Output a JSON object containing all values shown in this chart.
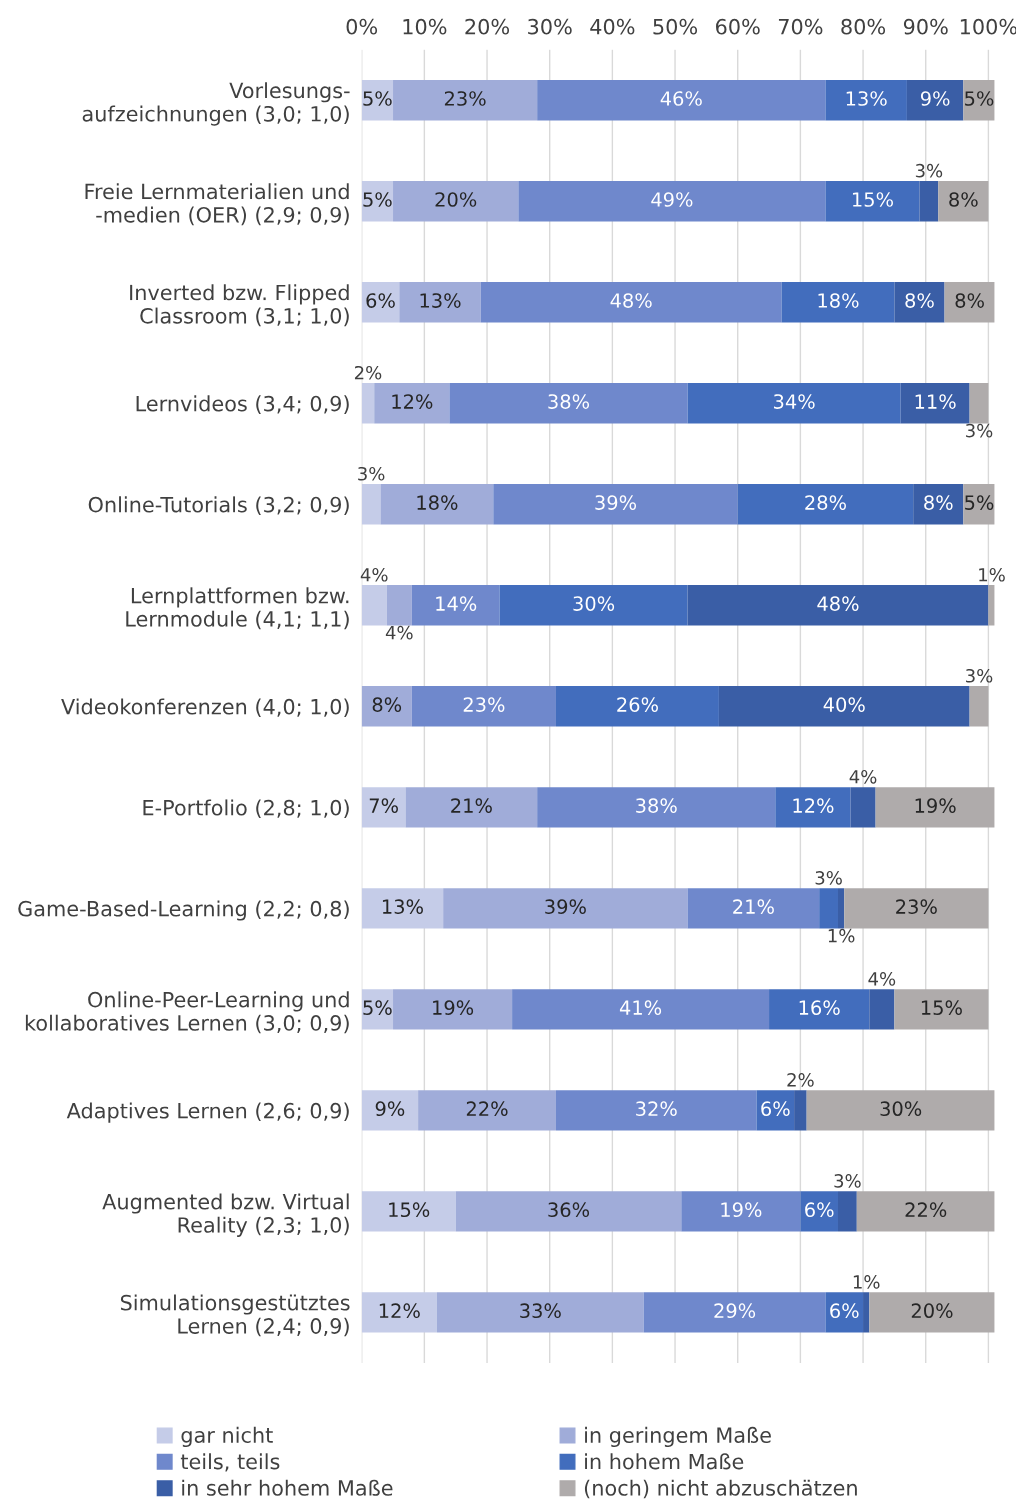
{
  "chart_data": {
    "type": "bar",
    "orientation": "horizontal",
    "stacked": true,
    "legend": "bottom",
    "grid": "x",
    "categories": [
      "Vorlesungs-\naufzeichnungen (3,0; 1,0)",
      "Freie Lernmaterialien und\n-medien (OER) (2,9; 0,9)",
      "Inverted bzw. Flipped\nClassroom (3,1; 1,0)",
      "Lernvideos (3,4; 0,9)",
      "Online-Tutorials (3,2; 0,9)",
      "Lernplattformen bzw.\nLernmodule (4,1; 1,1)",
      "Videokonferenzen (4,0; 1,0)",
      "E-Portfolio (2,8; 1,0)",
      "Game-Based-Learning (2,2; 0,8)",
      "Online-Peer-Learning und\nkollaboratives Lernen (3,0; 0,9)",
      "Adaptives Lernen (2,6; 0,9)",
      "Augmented bzw. Virtual\nReality (2,3; 1,0)",
      "Simulationsgestütztes\nLernen (2,4; 0,9)"
    ],
    "xlim": [
      0,
      101
    ],
    "xticks": [
      {
        "value": 0,
        "label": "0%"
      },
      {
        "value": 10,
        "label": "10%"
      },
      {
        "value": 20,
        "label": "20%"
      },
      {
        "value": 30,
        "label": "30%"
      },
      {
        "value": 40,
        "label": "40%"
      },
      {
        "value": 50,
        "label": "50%"
      },
      {
        "value": 60,
        "label": "60%"
      },
      {
        "value": 70,
        "label": "70%"
      },
      {
        "value": 80,
        "label": "80%"
      },
      {
        "value": 90,
        "label": "90%"
      },
      {
        "value": 100,
        "label": "100%"
      }
    ],
    "series": [
      {
        "name": "gar nicht",
        "color": "#c5cce8",
        "values": [
          5,
          5,
          6,
          2,
          3,
          4,
          null,
          7,
          13,
          5,
          9,
          15,
          12
        ],
        "value_labels": [
          "5%",
          "5%",
          "6%",
          "2%",
          "3%",
          "4%",
          null,
          "7%",
          "13%",
          "5%",
          "9%",
          "15%",
          "12%"
        ]
      },
      {
        "name": "in geringem Maße",
        "color": "#a0acd9",
        "values": [
          23,
          20,
          13,
          12,
          18,
          4,
          8,
          21,
          39,
          19,
          22,
          36,
          33
        ],
        "value_labels": [
          "23%",
          "20%",
          "13%",
          "12%",
          "18%",
          "4%",
          "8%",
          "21%",
          "39%",
          "19%",
          "22%",
          "36%",
          "33%"
        ]
      },
      {
        "name": "teils, teils",
        "color": "#6f88cc",
        "values": [
          46,
          49,
          48,
          38,
          39,
          14,
          23,
          38,
          21,
          41,
          32,
          19,
          29
        ],
        "value_labels": [
          "46%",
          "49%",
          "48%",
          "38%",
          "39%",
          "14%",
          "23%",
          "38%",
          "21%",
          "41%",
          "32%",
          "19%",
          "29%"
        ]
      },
      {
        "name": "in hohem Maße",
        "color": "#426dbd",
        "values": [
          13,
          15,
          18,
          34,
          28,
          30,
          26,
          12,
          3,
          16,
          6,
          6,
          6
        ],
        "value_labels": [
          "13%",
          "15%",
          "18%",
          "34%",
          "28%",
          "30%",
          "26%",
          "12%",
          "3%",
          "16%",
          "6%",
          "6%",
          "6%"
        ]
      },
      {
        "name": "in sehr hohem Maße",
        "color": "#3a5ea6",
        "values": [
          9,
          3,
          8,
          11,
          8,
          48,
          40,
          4,
          1,
          4,
          2,
          3,
          1
        ],
        "value_labels": [
          "9%",
          "3%",
          "8%",
          "11%",
          "8%",
          "48%",
          "40%",
          "4%",
          "1%",
          "4%",
          "2%",
          "3%",
          "1%"
        ]
      },
      {
        "name": "(noch) nicht abzuschätzen",
        "color": "#afabab",
        "values": [
          5,
          8,
          8,
          3,
          5,
          1,
          3,
          19,
          23,
          15,
          30,
          22,
          20
        ],
        "value_labels": [
          "5%",
          "8%",
          "8%",
          "3%",
          "5%",
          "1%",
          "3%",
          "19%",
          "23%",
          "15%",
          "30%",
          "22%",
          "20%"
        ]
      }
    ]
  }
}
